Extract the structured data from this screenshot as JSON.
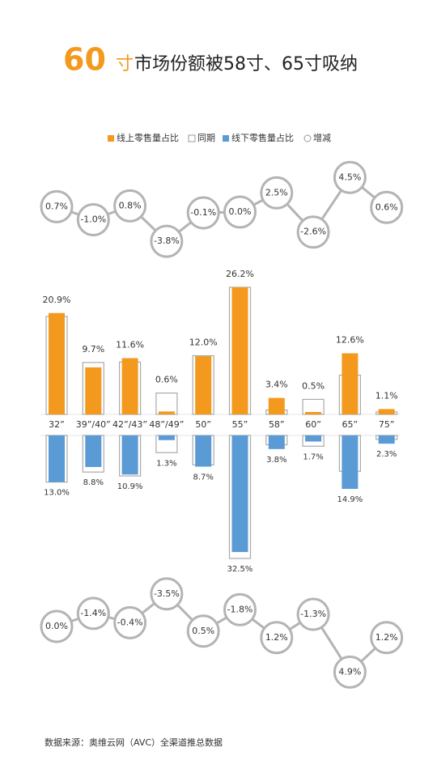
{
  "title_number": "60",
  "title_unit": "寸",
  "title_text": "市场份额被58寸、65寸吸纳",
  "chart_data": {
    "type": "bar",
    "legend": [
      "线上零售量占比",
      "同期",
      "线下零售量占比",
      "增减"
    ],
    "categories": [
      "32”",
      "39”/40”",
      "42”/43”",
      "48”/49”",
      "50”",
      "55”",
      "58”",
      "60”",
      "65”",
      "75”"
    ],
    "online": {
      "color": "#f39a1e",
      "values": [
        20.9,
        9.7,
        11.6,
        0.6,
        12.0,
        26.2,
        3.4,
        0.5,
        12.6,
        1.1
      ],
      "value_labels": [
        "20.9%",
        "9.7%",
        "11.6%",
        "0.6%",
        "12.0%",
        "26.2%",
        "3.4%",
        "0.5%",
        "12.6%",
        "1.1%"
      ]
    },
    "online_prior": {
      "values": [
        20.2,
        10.7,
        10.8,
        4.4,
        12.1,
        26.2,
        0.9,
        3.1,
        8.1,
        0.5
      ]
    },
    "offline": {
      "color": "#5b9bd5",
      "values": [
        13.0,
        8.8,
        10.9,
        1.3,
        8.7,
        32.5,
        3.8,
        1.7,
        14.9,
        2.3
      ],
      "value_labels": [
        "13.0%",
        "8.8%",
        "10.9%",
        "1.3%",
        "8.7%",
        "32.5%",
        "3.8%",
        "1.7%",
        "14.9%",
        "2.3%"
      ]
    },
    "offline_prior": {
      "values": [
        13.0,
        10.2,
        11.3,
        4.8,
        8.2,
        34.3,
        2.6,
        3.0,
        10.0,
        1.1
      ]
    },
    "online_change": {
      "values": [
        0.7,
        -1.0,
        0.8,
        -3.8,
        -0.1,
        0.0,
        2.5,
        -2.6,
        4.5,
        0.6
      ],
      "value_labels": [
        "0.7%",
        "-1.0%",
        "0.8%",
        "-3.8%",
        "-0.1%",
        "0.0%",
        "2.5%",
        "-2.6%",
        "4.5%",
        "0.6%"
      ]
    },
    "offline_change": {
      "values": [
        0.0,
        -1.4,
        -0.4,
        -3.5,
        0.5,
        -1.8,
        1.2,
        -1.3,
        4.9,
        1.2
      ],
      "value_labels": [
        "0.0%",
        "-1.4%",
        "-0.4%",
        "-3.5%",
        "0.5%",
        "-1.8%",
        "1.2%",
        "-1.3%",
        "4.9%",
        "1.2%"
      ]
    }
  },
  "source": "数据来源：奥维云网（AVC）全渠道推总数据"
}
